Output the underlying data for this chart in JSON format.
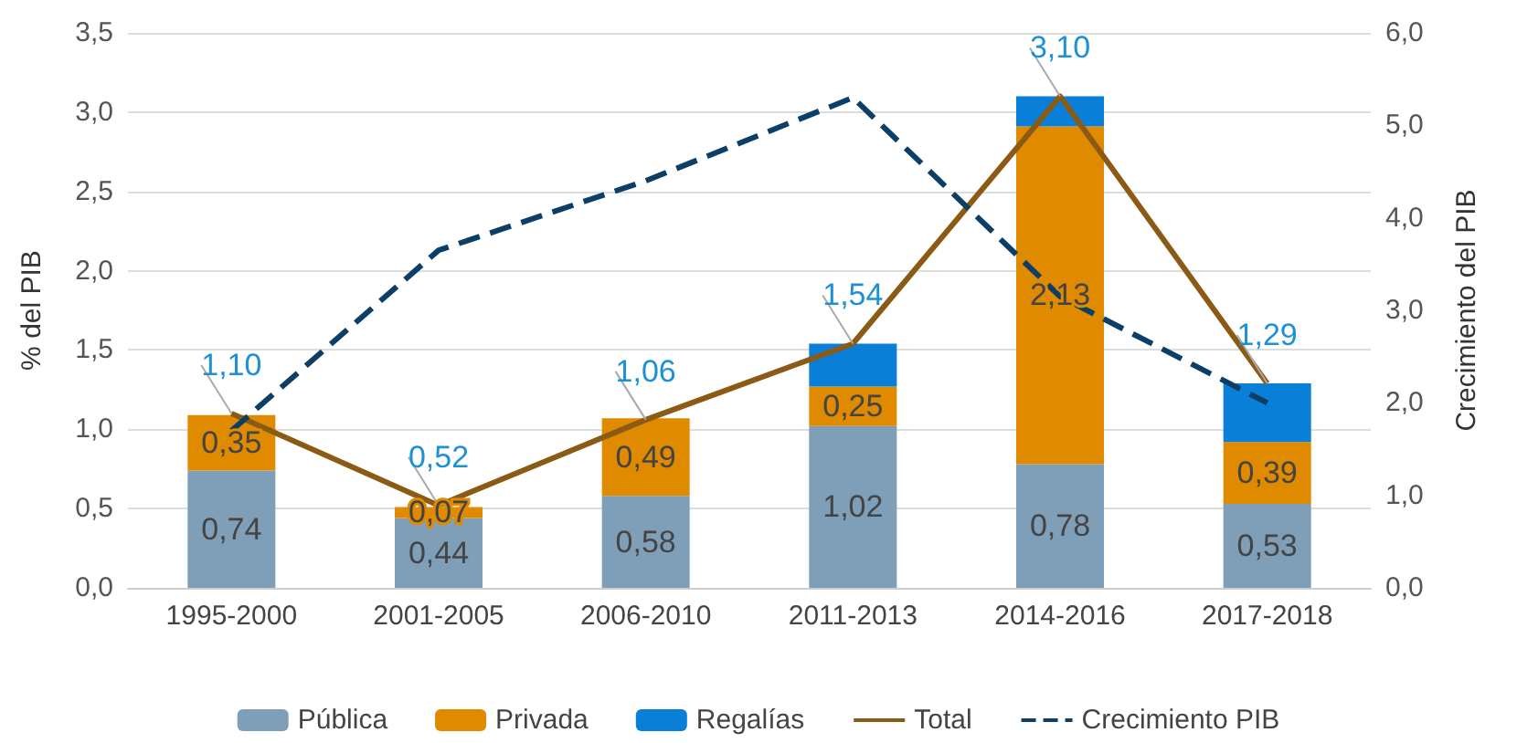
{
  "chart_data": {
    "type": "bar",
    "stacked": true,
    "ylabel": "% del PIB",
    "y2label": "Crecimiento del PIB",
    "categories": [
      "1995-2000",
      "2001-2005",
      "2006-2010",
      "2011-2013",
      "2014-2016",
      "2017-2018"
    ],
    "series": [
      {
        "name": "Pública",
        "color": "#7f9fb8",
        "values": [
          0.74,
          0.44,
          0.58,
          1.02,
          0.78,
          0.53
        ],
        "value_labels": [
          "0,74",
          "0,44",
          "0,58",
          "1,02",
          "0,78",
          "0,53"
        ]
      },
      {
        "name": "Privada",
        "color": "#e08a00",
        "values": [
          0.35,
          0.07,
          0.49,
          0.25,
          2.13,
          0.39
        ],
        "value_labels": [
          "0,35",
          "0,07",
          "0,49",
          "0,25",
          "2,13",
          "0,39"
        ]
      },
      {
        "name": "Regalías",
        "color": "#0a7fd8",
        "values": [
          null,
          null,
          null,
          0.27,
          0.19,
          0.37
        ]
      },
      {
        "name": "Total",
        "type": "line",
        "color": "#8b5a14",
        "values": [
          1.1,
          0.52,
          1.06,
          1.54,
          3.1,
          1.29
        ],
        "value_labels": [
          "1,10",
          "0,52",
          "1,06",
          "1,54",
          "3,10",
          "1,29"
        ]
      },
      {
        "name": "Crecimiento PIB",
        "type": "line",
        "axis": "y2",
        "line_style": "dashed",
        "color": "#0d3f66",
        "values": [
          1.7,
          3.65,
          4.4,
          5.3,
          3.15,
          2.0
        ]
      }
    ],
    "ylim": [
      0,
      3.5
    ],
    "yticks": [
      {
        "value": 0,
        "label": "0,0"
      },
      {
        "value": 0.5,
        "label": "0,5"
      },
      {
        "value": 1,
        "label": "1,0"
      },
      {
        "value": 1.5,
        "label": "1,5"
      },
      {
        "value": 2,
        "label": "2,0"
      },
      {
        "value": 2.5,
        "label": "2,5"
      },
      {
        "value": 3,
        "label": "3,0"
      },
      {
        "value": 3.5,
        "label": "3,5"
      }
    ],
    "y2lim": [
      0,
      6
    ],
    "y2ticks": [
      {
        "value": 0,
        "label": "0,0"
      },
      {
        "value": 1,
        "label": "1,0"
      },
      {
        "value": 2,
        "label": "2,0"
      },
      {
        "value": 3,
        "label": "3,0"
      },
      {
        "value": 4,
        "label": "4,0"
      },
      {
        "value": 5,
        "label": "5,0"
      },
      {
        "value": 6,
        "label": "6,0"
      }
    ],
    "grid": "y",
    "legend": "bottom",
    "marker": "none"
  }
}
